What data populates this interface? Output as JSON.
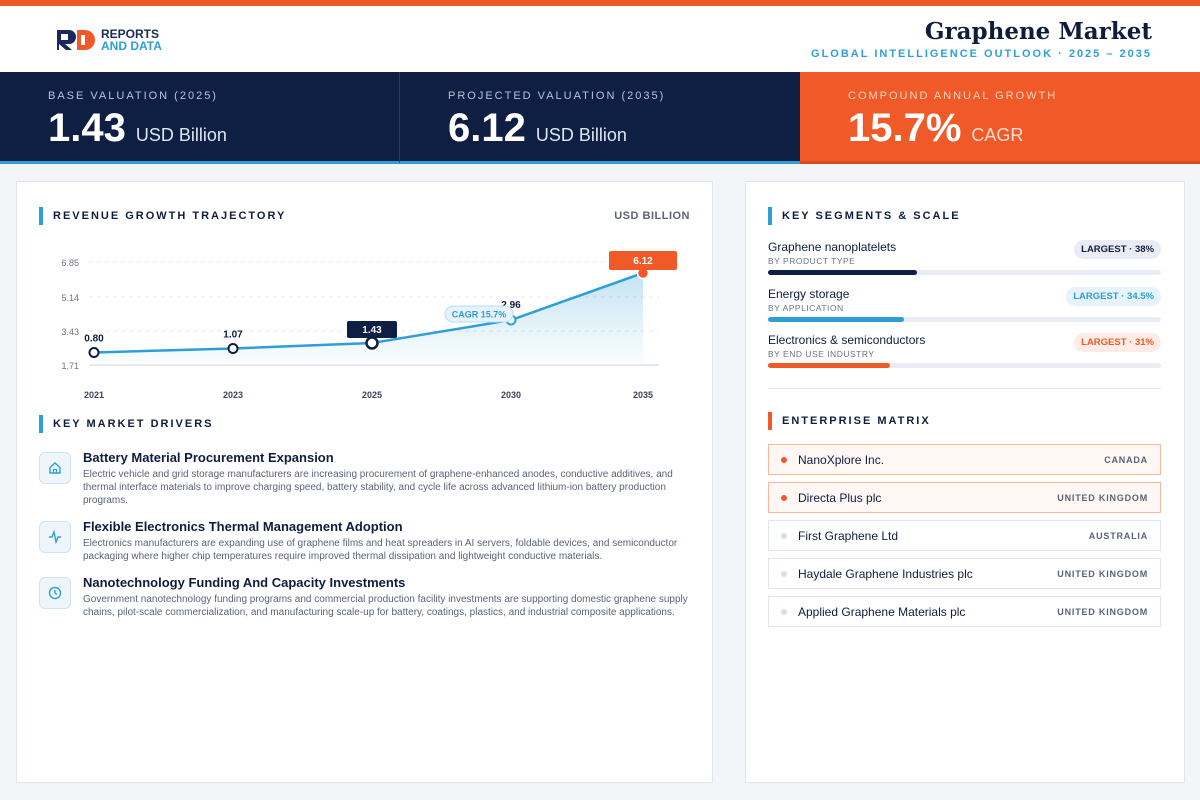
{
  "header": {
    "logo_line1": "REPORTS",
    "logo_line2": "AND DATA",
    "title": "Graphene Market",
    "subtitle": "GLOBAL INTELLIGENCE OUTLOOK  ·  2025 – 2035"
  },
  "kpis": [
    {
      "label": "BASE VALUATION (2025)",
      "value": "1.43",
      "unit": "USD Billion"
    },
    {
      "label": "PROJECTED VALUATION (2035)",
      "value": "6.12",
      "unit": "USD Billion"
    },
    {
      "label": "COMPOUND ANNUAL GROWTH",
      "value": "15.7%",
      "unit": "CAGR"
    }
  ],
  "colors": {
    "accent": "#2e9fd6",
    "brand_orange": "#f05a28",
    "navy": "#0f1f43"
  },
  "chart_section": {
    "title": "REVENUE GROWTH TRAJECTORY",
    "unit": "USD BILLION"
  },
  "chart_data": {
    "type": "line",
    "x": [
      "2021",
      "2023",
      "2025",
      "2030",
      "2035"
    ],
    "series": [
      {
        "values": [
          0.8,
          1.07,
          1.43,
          2.96,
          6.12
        ]
      }
    ],
    "data_labels": [
      "0.80",
      "1.07",
      "1.43",
      "2.96",
      "6.12"
    ],
    "y_ticks": [
      "1.71",
      "3.43",
      "5.14",
      "6.85"
    ],
    "ylim": [
      0,
      6.85
    ],
    "annotation": "CAGR 15.7%",
    "grid": true,
    "area_fill": true
  },
  "drivers_section": {
    "title": "KEY MARKET DRIVERS",
    "items": [
      {
        "icon": "home-icon",
        "title": "Battery Material Procurement Expansion",
        "desc": "Electric vehicle and grid storage manufacturers are increasing procurement of graphene-enhanced anodes, conductive additives, and thermal interface materials to improve charging speed, battery stability, and cycle life across advanced lithium-ion battery production programs."
      },
      {
        "icon": "activity-icon",
        "title": "Flexible Electronics Thermal Management Adoption",
        "desc": "Electronics manufacturers are expanding use of graphene films and heat spreaders in AI servers, foldable devices, and semiconductor packaging where higher chip temperatures require improved thermal dissipation and lightweight conductive materials."
      },
      {
        "icon": "clock-icon",
        "title": "Nanotechnology Funding And Capacity Investments",
        "desc": "Government nanotechnology funding programs and commercial production facility investments are supporting domestic graphene supply chains, pilot-scale commercialization, and manufacturing scale-up for battery, coatings, plastics, and industrial composite applications."
      }
    ]
  },
  "segments_section": {
    "title": "KEY SEGMENTS & SCALE",
    "items": [
      {
        "name": "Graphene nanoplatelets",
        "sub": "BY PRODUCT TYPE",
        "badge": "LARGEST · 38%",
        "share": 0.38,
        "color": "#0f1f43",
        "badge_bg": "#e9edf3",
        "badge_fg": "#0f1f43"
      },
      {
        "name": "Energy storage",
        "sub": "BY APPLICATION",
        "badge": "LARGEST · 34.5%",
        "share": 0.345,
        "color": "#2e9fd6",
        "badge_bg": "#e6f3fb",
        "badge_fg": "#2e9fd6"
      },
      {
        "name": "Electronics & semiconductors",
        "sub": "BY END USE INDUSTRY",
        "badge": "LARGEST · 31%",
        "share": 0.31,
        "color": "#f05a28",
        "badge_bg": "#fdece5",
        "badge_fg": "#f05a28"
      }
    ]
  },
  "matrix_section": {
    "title": "ENTERPRISE MATRIX",
    "items": [
      {
        "name": "NanoXplore Inc.",
        "country": "CANADA",
        "highlight": true
      },
      {
        "name": "Directa Plus plc",
        "country": "UNITED KINGDOM",
        "highlight": true
      },
      {
        "name": "First Graphene Ltd",
        "country": "AUSTRALIA",
        "highlight": false
      },
      {
        "name": "Haydale Graphene Industries plc",
        "country": "UNITED KINGDOM",
        "highlight": false
      },
      {
        "name": "Applied Graphene Materials plc",
        "country": "UNITED KINGDOM",
        "highlight": false
      }
    ]
  }
}
